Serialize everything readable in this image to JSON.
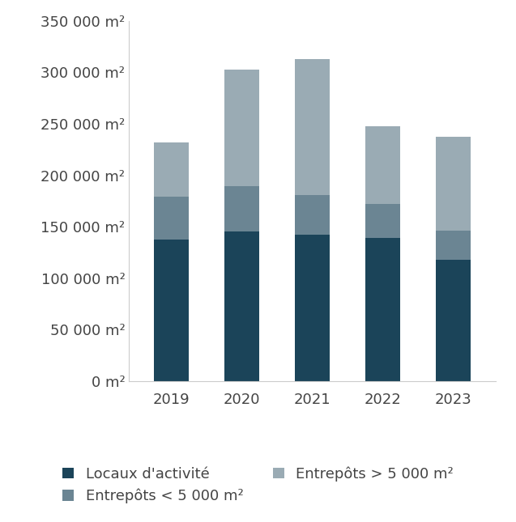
{
  "chart_data": {
    "type": "bar",
    "stacked": true,
    "legend": "lower center",
    "grid": false,
    "categories": [
      "2019",
      "2020",
      "2021",
      "2022",
      "2023"
    ],
    "series": [
      {
        "name": "Locaux d'activité",
        "color": "#1b4459",
        "values": [
          137500,
          145000,
          142500,
          139000,
          118000
        ]
      },
      {
        "name": "Entrepôts < 5 000 m²",
        "color": "#6b8593",
        "values": [
          42000,
          44500,
          38000,
          33000,
          28500
        ]
      },
      {
        "name": "Entrepôts > 5 000 m²",
        "color": "#9aabb4",
        "values": [
          52000,
          113000,
          132500,
          75500,
          90500
        ]
      }
    ],
    "ylim": [
      0,
      350000
    ],
    "yticks": [
      {
        "value": 0,
        "label": "0 m²"
      },
      {
        "value": 50000,
        "label": "50 000 m²"
      },
      {
        "value": 100000,
        "label": "100 000 m²"
      },
      {
        "value": 150000,
        "label": "150 000 m²"
      },
      {
        "value": 200000,
        "label": "200 000 m²"
      },
      {
        "value": 250000,
        "label": "250 000 m²"
      },
      {
        "value": 300000,
        "label": "300 000 m²"
      },
      {
        "value": 350000,
        "label": "350 000 m²"
      }
    ]
  }
}
